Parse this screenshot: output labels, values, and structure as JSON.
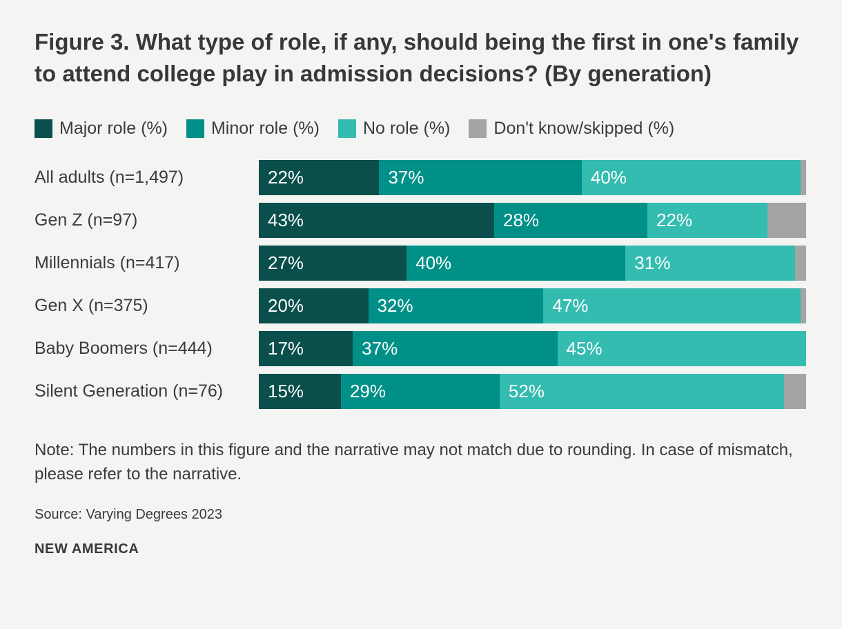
{
  "page": {
    "background": "#f4f4f3"
  },
  "title": "Figure 3. What type of role, if any, should being the first in one's family to attend college play in admission decisions? (By generation)",
  "colors": {
    "major_role": "#0a4f4b",
    "minor_role": "#009088",
    "no_role": "#34bcb1",
    "dont_know": "#a4a4a4",
    "text": "#3b3b3b",
    "bar_value_text": "#ffffff"
  },
  "legend": [
    {
      "label": "Major role (%)",
      "color": "#0a4f4b"
    },
    {
      "label": "Minor role (%)",
      "color": "#009088"
    },
    {
      "label": "No role (%)",
      "color": "#34bcb1"
    },
    {
      "label": "Don't know/skipped (%)",
      "color": "#a4a4a4"
    }
  ],
  "chart_data": {
    "type": "bar",
    "orientation": "horizontal",
    "stacked": true,
    "title": "Figure 3. What type of role, if any, should being the first in one's family to attend college play in admission decisions? (By generation)",
    "categories": [
      "All adults (n=1,497)",
      "Gen Z (n=97)",
      "Millennials (n=417)",
      "Gen X (n=375)",
      "Baby Boomers (n=444)",
      "Silent Generation (n=76)"
    ],
    "series": [
      {
        "name": "Major role (%)",
        "color": "#0a4f4b",
        "values": [
          22,
          43,
          27,
          20,
          17,
          15
        ],
        "show_labels": true
      },
      {
        "name": "Minor role (%)",
        "color": "#009088",
        "values": [
          37,
          28,
          40,
          32,
          37,
          29
        ],
        "show_labels": true
      },
      {
        "name": "No role (%)",
        "color": "#34bcb1",
        "values": [
          40,
          22,
          31,
          47,
          45,
          52
        ],
        "show_labels": true
      },
      {
        "name": "Don't know/skipped (%)",
        "color": "#a4a4a4",
        "values": [
          1,
          7,
          2,
          1,
          0,
          4
        ],
        "show_labels": false
      }
    ],
    "value_suffix": "%",
    "xlim": [
      0,
      100
    ],
    "grid": false,
    "legend_position": "top"
  },
  "note": "Note: The numbers in this figure and the narrative may not match due to rounding. In case of mismatch, please refer to the narrative.",
  "source": "Source: Varying Degrees 2023",
  "footer_logo": "NEW AMERICA"
}
